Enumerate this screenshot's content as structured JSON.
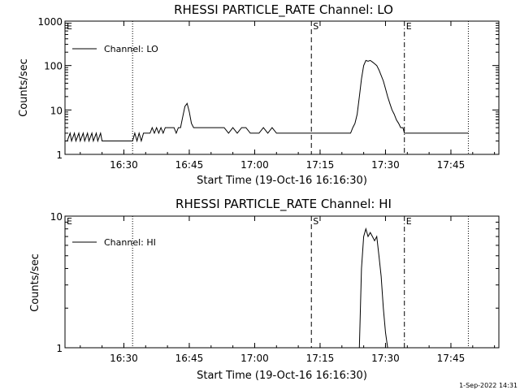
{
  "chart_data": [
    {
      "type": "line",
      "title": "RHESSI PARTICLE_RATE Channel: LO",
      "xlabel": "Start Time (19-Oct-16 16:16:30)",
      "ylabel": "Counts/sec",
      "yscale": "log",
      "ylim": [
        1,
        1000
      ],
      "y_ticks": [
        1,
        10,
        100,
        1000
      ],
      "y_tick_labels": [
        "1",
        "10",
        "100",
        "1000"
      ],
      "x_range": [
        "16:16:30",
        "17:56:00"
      ],
      "x_ticks": [
        "16:30",
        "16:45",
        "17:00",
        "17:15",
        "17:30",
        "17:45"
      ],
      "x_tick_labels": [
        "16:30",
        "16:45",
        "17:00",
        "17:15",
        "17:30",
        "17:45"
      ],
      "legend": {
        "position": "top-left",
        "entries": [
          "Channel: LO"
        ]
      },
      "grid": false,
      "markers": [
        {
          "time": "16:16:30",
          "label": "E",
          "style": "dotted"
        },
        {
          "time": "16:32:00",
          "label": "",
          "style": "dotted"
        },
        {
          "time": "17:13:00",
          "label": "S",
          "style": "dashed"
        },
        {
          "time": "17:34:20",
          "label": "E",
          "style": "dashdot"
        },
        {
          "time": "17:49:00",
          "label": "",
          "style": "dotted"
        }
      ],
      "series": [
        {
          "name": "Channel: LO",
          "x": [
            "16:16:30",
            "16:17:00",
            "16:17:40",
            "16:18:00",
            "16:18:40",
            "16:19:00",
            "16:19:40",
            "16:20:00",
            "16:20:40",
            "16:21:00",
            "16:21:40",
            "16:22:00",
            "16:22:40",
            "16:23:00",
            "16:23:40",
            "16:24:00",
            "16:24:40",
            "16:25:00",
            "16:25:30",
            "16:26:00",
            "16:32:00",
            "16:32:30",
            "16:33:00",
            "16:33:30",
            "16:34:00",
            "16:34:30",
            "16:35:00",
            "16:35:30",
            "16:36:00",
            "16:36:30",
            "16:37:00",
            "16:37:30",
            "16:38:00",
            "16:38:30",
            "16:39:00",
            "16:39:30",
            "16:40:00",
            "16:40:30",
            "16:41:00",
            "16:41:30",
            "16:42:00",
            "16:42:30",
            "16:43:00",
            "16:43:30",
            "16:44:00",
            "16:44:30",
            "16:45:00",
            "16:45:30",
            "16:46:00",
            "16:47:00",
            "16:48:00",
            "16:49:00",
            "16:50:00",
            "16:51:00",
            "16:52:00",
            "16:53:00",
            "16:54:00",
            "16:55:00",
            "16:56:00",
            "16:57:00",
            "16:58:00",
            "16:59:00",
            "17:00:00",
            "17:01:00",
            "17:02:00",
            "17:03:00",
            "17:04:00",
            "17:05:00",
            "17:06:00",
            "17:07:00",
            "17:08:00",
            "17:09:00",
            "17:10:00",
            "17:11:00",
            "17:12:00",
            "17:13:00",
            "17:14:00",
            "17:15:00",
            "17:16:00",
            "17:17:00",
            "17:18:00",
            "17:19:00",
            "17:20:00",
            "17:21:00",
            "17:22:00",
            "17:22:30",
            "17:23:00",
            "17:23:30",
            "17:24:00",
            "17:24:30",
            "17:25:00",
            "17:25:30",
            "17:26:00",
            "17:26:30",
            "17:27:00",
            "17:27:30",
            "17:28:00",
            "17:28:30",
            "17:29:00",
            "17:29:30",
            "17:30:00",
            "17:30:30",
            "17:31:00",
            "17:31:30",
            "17:32:00",
            "17:32:30",
            "17:33:00",
            "17:33:30",
            "17:34:00",
            "17:34:20",
            "17:35:00",
            "17:36:00",
            "17:37:00",
            "17:38:00",
            "17:39:00",
            "17:40:00",
            "17:41:00",
            "17:42:00",
            "17:43:00",
            "17:44:00",
            "17:45:00",
            "17:46:00",
            "17:47:00",
            "17:48:00",
            "17:49:00"
          ],
          "y": [
            2,
            2,
            3,
            2,
            3,
            2,
            3,
            2,
            3,
            2,
            3,
            2,
            3,
            2,
            3,
            2,
            3,
            2,
            2,
            2,
            2,
            3,
            2,
            3,
            2,
            3,
            3,
            3,
            3,
            4,
            3,
            4,
            3,
            4,
            3,
            4,
            4,
            4,
            4,
            4,
            3,
            4,
            4,
            7,
            12,
            14,
            9,
            5,
            4,
            4,
            4,
            4,
            4,
            4,
            4,
            4,
            3,
            4,
            3,
            4,
            4,
            3,
            3,
            3,
            4,
            3,
            4,
            3,
            3,
            3,
            3,
            3,
            3,
            3,
            3,
            3,
            3,
            3,
            3,
            3,
            3,
            3,
            3,
            3,
            3,
            4,
            5,
            8,
            20,
            50,
            100,
            130,
            125,
            130,
            120,
            110,
            100,
            80,
            60,
            45,
            30,
            20,
            14,
            10,
            8,
            6,
            5,
            4,
            4,
            3,
            3,
            3,
            3,
            3,
            3,
            3,
            3,
            3,
            3,
            3,
            3,
            3,
            3,
            3,
            3
          ]
        }
      ]
    },
    {
      "type": "line",
      "title": "RHESSI PARTICLE_RATE Channel: HI",
      "xlabel": "Start Time (19-Oct-16 16:16:30)",
      "ylabel": "Counts/sec",
      "yscale": "log",
      "ylim": [
        1,
        10
      ],
      "y_ticks": [
        1,
        10
      ],
      "y_tick_labels": [
        "1",
        "10"
      ],
      "x_range": [
        "16:16:30",
        "17:56:00"
      ],
      "x_ticks": [
        "16:30",
        "16:45",
        "17:00",
        "17:15",
        "17:30",
        "17:45"
      ],
      "x_tick_labels": [
        "16:30",
        "16:45",
        "17:00",
        "17:15",
        "17:30",
        "17:45"
      ],
      "legend": {
        "position": "top-left",
        "entries": [
          "Channel: HI"
        ]
      },
      "grid": false,
      "markers": [
        {
          "time": "16:16:30",
          "label": "E",
          "style": "dotted"
        },
        {
          "time": "16:32:00",
          "label": "",
          "style": "dotted"
        },
        {
          "time": "17:13:00",
          "label": "S",
          "style": "dashed"
        },
        {
          "time": "17:34:20",
          "label": "E",
          "style": "dashdot"
        },
        {
          "time": "17:49:00",
          "label": "",
          "style": "dotted"
        }
      ],
      "series": [
        {
          "name": "Channel: HI",
          "x": [
            "17:24:00",
            "17:24:30",
            "17:25:00",
            "17:25:30",
            "17:26:00",
            "17:26:30",
            "17:27:00",
            "17:27:30",
            "17:28:00",
            "17:28:30",
            "17:29:00",
            "17:29:30",
            "17:30:00",
            "17:30:30"
          ],
          "y": [
            1,
            4,
            7,
            8,
            7,
            7.5,
            7,
            6.5,
            7,
            5,
            3.5,
            2,
            1.3,
            1
          ]
        }
      ]
    }
  ],
  "footer": {
    "timestamp": "1-Sep-2022 14:31"
  }
}
